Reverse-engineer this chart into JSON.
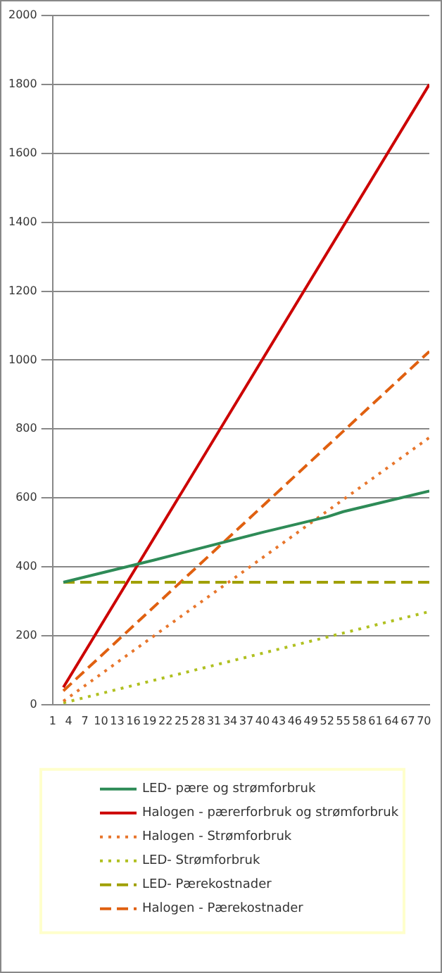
{
  "chart_data": {
    "type": "line",
    "xlim": [
      1,
      71
    ],
    "xticks": [
      1,
      4,
      7,
      10,
      13,
      16,
      19,
      22,
      25,
      28,
      31,
      34,
      37,
      40,
      43,
      46,
      49,
      52,
      55,
      58,
      61,
      64,
      67,
      70
    ],
    "ylim": [
      0,
      2000
    ],
    "yticks": [
      0,
      200,
      400,
      600,
      800,
      1000,
      1200,
      1400,
      1600,
      1800,
      2000
    ],
    "grid": "y",
    "legend": "bottom",
    "marker": "none",
    "series": [
      {
        "name": "LED- pære og strømforbruk",
        "color": "#2e8b57",
        "line_style": "solid",
        "x": [
          3,
          20,
          40,
          52,
          55,
          71
        ],
        "values": [
          355,
          420,
          500,
          545,
          560,
          620
        ]
      },
      {
        "name": "Halogen - pærerforbruk og strømforbruk",
        "color": "#cc0000",
        "line_style": "solid",
        "x": [
          3,
          71
        ],
        "values": [
          50,
          1800
        ]
      },
      {
        "name": "Halogen - Strømforbruk",
        "color": "#e8762c",
        "line_style": "dotted",
        "x": [
          3,
          71
        ],
        "values": [
          10,
          775
        ]
      },
      {
        "name": "LED- Strømforbruk",
        "color": "#b0c020",
        "line_style": "dotted",
        "x": [
          3,
          71
        ],
        "values": [
          5,
          270
        ]
      },
      {
        "name": "LED- Pærekostnader",
        "color": "#a0a000",
        "line_style": "dashed",
        "x": [
          3,
          71
        ],
        "values": [
          355,
          355
        ]
      },
      {
        "name": "Halogen - Pærekostnader",
        "color": "#e06010",
        "line_style": "dashed",
        "x": [
          3,
          71
        ],
        "values": [
          40,
          1025
        ]
      }
    ]
  }
}
